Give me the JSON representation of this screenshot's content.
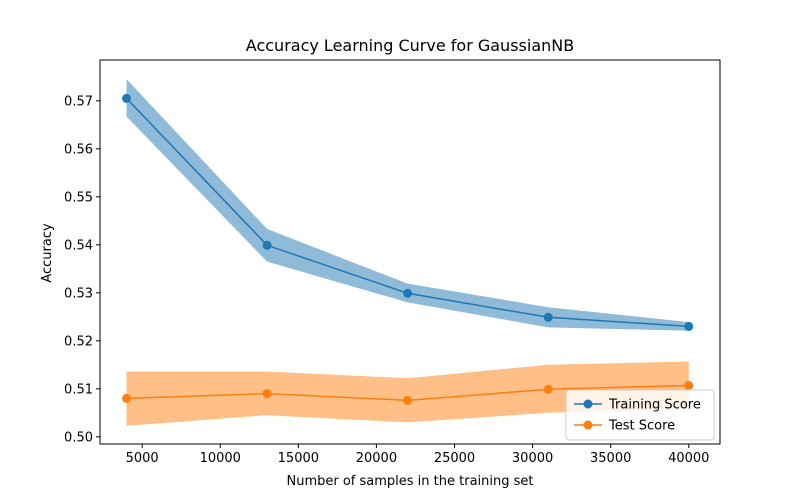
{
  "chart_data": {
    "type": "line",
    "title": "Accuracy Learning Curve for GaussianNB",
    "xlabel": "Number of samples in the training set",
    "ylabel": "Accuracy",
    "x": [
      4000,
      13000,
      22000,
      31000,
      40000
    ],
    "xlim": [
      2300,
      42000
    ],
    "ylim": [
      0.4985,
      0.5785
    ],
    "xticks": [
      5000,
      10000,
      15000,
      20000,
      25000,
      30000,
      35000,
      40000
    ],
    "yticks": [
      0.5,
      0.51,
      0.52,
      0.53,
      0.54,
      0.55,
      0.56,
      0.57
    ],
    "ytick_labels": [
      "0.50",
      "0.51",
      "0.52",
      "0.53",
      "0.54",
      "0.55",
      "0.56",
      "0.57"
    ],
    "grid": false,
    "legend_position": "bottom-right",
    "series": [
      {
        "name": "Training Score",
        "color": "#1f77b4",
        "band_color": "#1f77b4",
        "values": [
          0.5705,
          0.5399,
          0.5299,
          0.5249,
          0.523
        ],
        "lower": [
          0.5667,
          0.5365,
          0.528,
          0.5228,
          0.5221
        ],
        "upper": [
          0.5745,
          0.5433,
          0.5319,
          0.527,
          0.5239
        ]
      },
      {
        "name": "Test Score",
        "color": "#ff7f0e",
        "band_color": "#ff7f0e",
        "values": [
          0.508,
          0.509,
          0.5076,
          0.5099,
          0.5107
        ],
        "lower": [
          0.5023,
          0.5045,
          0.503,
          0.505,
          0.5058
        ],
        "upper": [
          0.5136,
          0.5136,
          0.5122,
          0.515,
          0.5157
        ]
      }
    ]
  }
}
